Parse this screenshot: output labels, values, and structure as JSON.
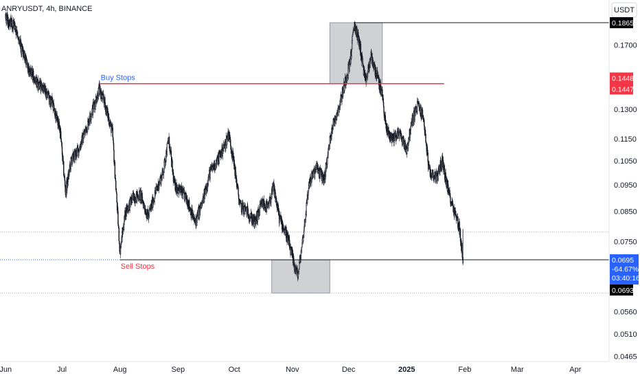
{
  "header": {
    "symbol": "ANRYUSDT, 4h, BINANCE"
  },
  "currency_button": "USDT",
  "colors": {
    "candle": "#131722",
    "buy_stops": "#f23645",
    "sell_stops": "#f23645",
    "buy_label": "#2962ff",
    "price_tag": "#2962ff",
    "dark_tag": "#000000",
    "red_tag": "#f23645",
    "box": "#9598a1",
    "grid_line": "#b2b5be"
  },
  "chart_data": {
    "type": "candlestick",
    "timeframe": "4h",
    "y_scale": "log",
    "ylim": [
      0.0455,
      0.205
    ],
    "y_ticks": [
      "0.1865",
      "0.1700",
      "0.1448",
      "0.1447",
      "0.1300",
      "0.1150",
      "0.1050",
      "0.0950",
      "0.0850",
      "0.0750",
      "0.0695",
      "0.0693",
      "0.0560",
      "0.0510",
      "0.0465"
    ],
    "y_tick_values": [
      0.17,
      0.13,
      0.115,
      0.105,
      0.095,
      0.085,
      0.075,
      0.056,
      0.051,
      0.0465
    ],
    "x_ticks": [
      {
        "label": "Jun",
        "date": "2024-06-01"
      },
      {
        "label": "Jul",
        "date": "2024-07-01"
      },
      {
        "label": "Aug",
        "date": "2024-08-01"
      },
      {
        "label": "Sep",
        "date": "2024-09-01"
      },
      {
        "label": "Oct",
        "date": "2024-10-01"
      },
      {
        "label": "Nov",
        "date": "2024-11-01"
      },
      {
        "label": "Dec",
        "date": "2024-12-01"
      },
      {
        "label": "2025",
        "date": "2025-01-01"
      },
      {
        "label": "Feb",
        "date": "2025-02-01"
      },
      {
        "label": "Mar",
        "date": "2025-03-01"
      },
      {
        "label": "Apr",
        "date": "2025-04-01"
      }
    ],
    "price_path": [
      [
        "2024-06-01",
        0.19
      ],
      [
        "2024-06-06",
        0.183
      ],
      [
        "2024-06-10",
        0.165
      ],
      [
        "2024-06-14",
        0.152
      ],
      [
        "2024-06-18",
        0.145
      ],
      [
        "2024-06-22",
        0.14
      ],
      [
        "2024-06-26",
        0.133
      ],
      [
        "2024-06-30",
        0.12
      ],
      [
        "2024-07-03",
        0.092
      ],
      [
        "2024-07-06",
        0.105
      ],
      [
        "2024-07-10",
        0.11
      ],
      [
        "2024-07-14",
        0.12
      ],
      [
        "2024-07-18",
        0.132
      ],
      [
        "2024-07-21",
        0.141
      ],
      [
        "2024-07-24",
        0.133
      ],
      [
        "2024-07-28",
        0.118
      ],
      [
        "2024-08-01",
        0.072
      ],
      [
        "2024-08-04",
        0.085
      ],
      [
        "2024-08-08",
        0.09
      ],
      [
        "2024-08-12",
        0.091
      ],
      [
        "2024-08-16",
        0.083
      ],
      [
        "2024-08-20",
        0.092
      ],
      [
        "2024-08-24",
        0.1
      ],
      [
        "2024-08-27",
        0.115
      ],
      [
        "2024-08-30",
        0.095
      ],
      [
        "2024-09-03",
        0.092
      ],
      [
        "2024-09-06",
        0.089
      ],
      [
        "2024-09-10",
        0.081
      ],
      [
        "2024-09-14",
        0.088
      ],
      [
        "2024-09-18",
        0.1
      ],
      [
        "2024-09-22",
        0.105
      ],
      [
        "2024-09-26",
        0.112
      ],
      [
        "2024-09-28",
        0.118
      ],
      [
        "2024-10-01",
        0.103
      ],
      [
        "2024-10-04",
        0.087
      ],
      [
        "2024-10-08",
        0.085
      ],
      [
        "2024-10-12",
        0.081
      ],
      [
        "2024-10-16",
        0.088
      ],
      [
        "2024-10-19",
        0.086
      ],
      [
        "2024-10-22",
        0.094
      ],
      [
        "2024-10-25",
        0.083
      ],
      [
        "2024-10-29",
        0.077
      ],
      [
        "2024-11-02",
        0.068
      ],
      [
        "2024-11-04",
        0.065
      ],
      [
        "2024-11-07",
        0.078
      ],
      [
        "2024-11-10",
        0.096
      ],
      [
        "2024-11-14",
        0.102
      ],
      [
        "2024-11-18",
        0.097
      ],
      [
        "2024-11-22",
        0.12
      ],
      [
        "2024-11-26",
        0.132
      ],
      [
        "2024-11-29",
        0.145
      ],
      [
        "2024-12-02",
        0.16
      ],
      [
        "2024-12-04",
        0.186
      ],
      [
        "2024-12-07",
        0.17
      ],
      [
        "2024-12-10",
        0.145
      ],
      [
        "2024-12-13",
        0.162
      ],
      [
        "2024-12-16",
        0.15
      ],
      [
        "2024-12-19",
        0.138
      ],
      [
        "2024-12-21",
        0.12
      ],
      [
        "2024-12-24",
        0.115
      ],
      [
        "2024-12-28",
        0.118
      ],
      [
        "2025-01-01",
        0.11
      ],
      [
        "2025-01-04",
        0.124
      ],
      [
        "2025-01-07",
        0.133
      ],
      [
        "2025-01-10",
        0.125
      ],
      [
        "2025-01-13",
        0.1
      ],
      [
        "2025-01-17",
        0.098
      ],
      [
        "2025-01-20",
        0.105
      ],
      [
        "2025-01-23",
        0.093
      ],
      [
        "2025-01-27",
        0.084
      ],
      [
        "2025-01-29",
        0.08
      ],
      [
        "2025-01-31",
        0.0695
      ]
    ],
    "last_price": 0.0695,
    "change_percent": "-64.67%",
    "countdown": "03:40:16",
    "annotations": [
      {
        "label": "Buy Stops",
        "type": "hline",
        "price": 0.1447,
        "from": "2024-07-21",
        "to": "2025-01-21"
      },
      {
        "label": "Sell Stops",
        "type": "hline",
        "price": 0.0695,
        "from": "2024-08-01",
        "to": "2025-04-30"
      }
    ],
    "hlines": [
      {
        "price": 0.1865,
        "from": "2024-12-04",
        "to": "2025-04-30"
      }
    ],
    "boxes": [
      {
        "from": "2024-11-21",
        "to": "2024-12-19",
        "top": 0.1865,
        "bottom": 0.1447
      },
      {
        "from": "2024-10-21",
        "to": "2024-11-21",
        "top": 0.0695,
        "bottom": 0.0605
      }
    ],
    "dotted_lines": [
      {
        "price": 0.078
      },
      {
        "price": 0.0605
      }
    ],
    "price_tags": [
      {
        "text": "0.1865",
        "price": 0.1865,
        "style": "dark"
      },
      {
        "text": "0.1448",
        "price": 0.1448,
        "style": "red"
      },
      {
        "text": "0.1447",
        "price": 0.1447,
        "style": "red"
      },
      {
        "text": "0.0695",
        "price": 0.0695,
        "style": "blue"
      },
      {
        "text": "0.0693",
        "price": 0.0693,
        "style": "dark"
      }
    ],
    "grid": false
  }
}
